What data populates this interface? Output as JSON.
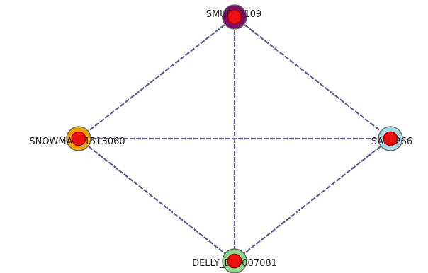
{
  "graph": {
    "nodes": [
      {
        "id": "n1",
        "label": "SMU​​​109",
        "text": "SMUD_2109",
        "color": "#7a0f6a"
      },
      {
        "id": "n2",
        "label": "SNOWMAN_1513060",
        "text": "SNOWMAN_1513060",
        "color": "#f0a000"
      },
      {
        "id": "n3",
        "label": "SAN_266",
        "text": "SAN_266",
        "color": "#a8d8e6"
      },
      {
        "id": "n4",
        "label": "DELLY_D_0007081",
        "text": "DELLY_D_0007081",
        "color": "#8fd88a"
      }
    ],
    "edges": [
      {
        "source": "n1",
        "target": "n2"
      },
      {
        "source": "n1",
        "target": "n3"
      },
      {
        "source": "n1",
        "target": "n4"
      },
      {
        "source": "n2",
        "target": "n3"
      },
      {
        "source": "n2",
        "target": "n4"
      },
      {
        "source": "n3",
        "target": "n4"
      }
    ],
    "labels": {
      "n1": "SMU  109",
      "n2": "SNOWM   513060",
      "n3": "SAN    266",
      "n4": "DELLY_D  0007081"
    }
  }
}
